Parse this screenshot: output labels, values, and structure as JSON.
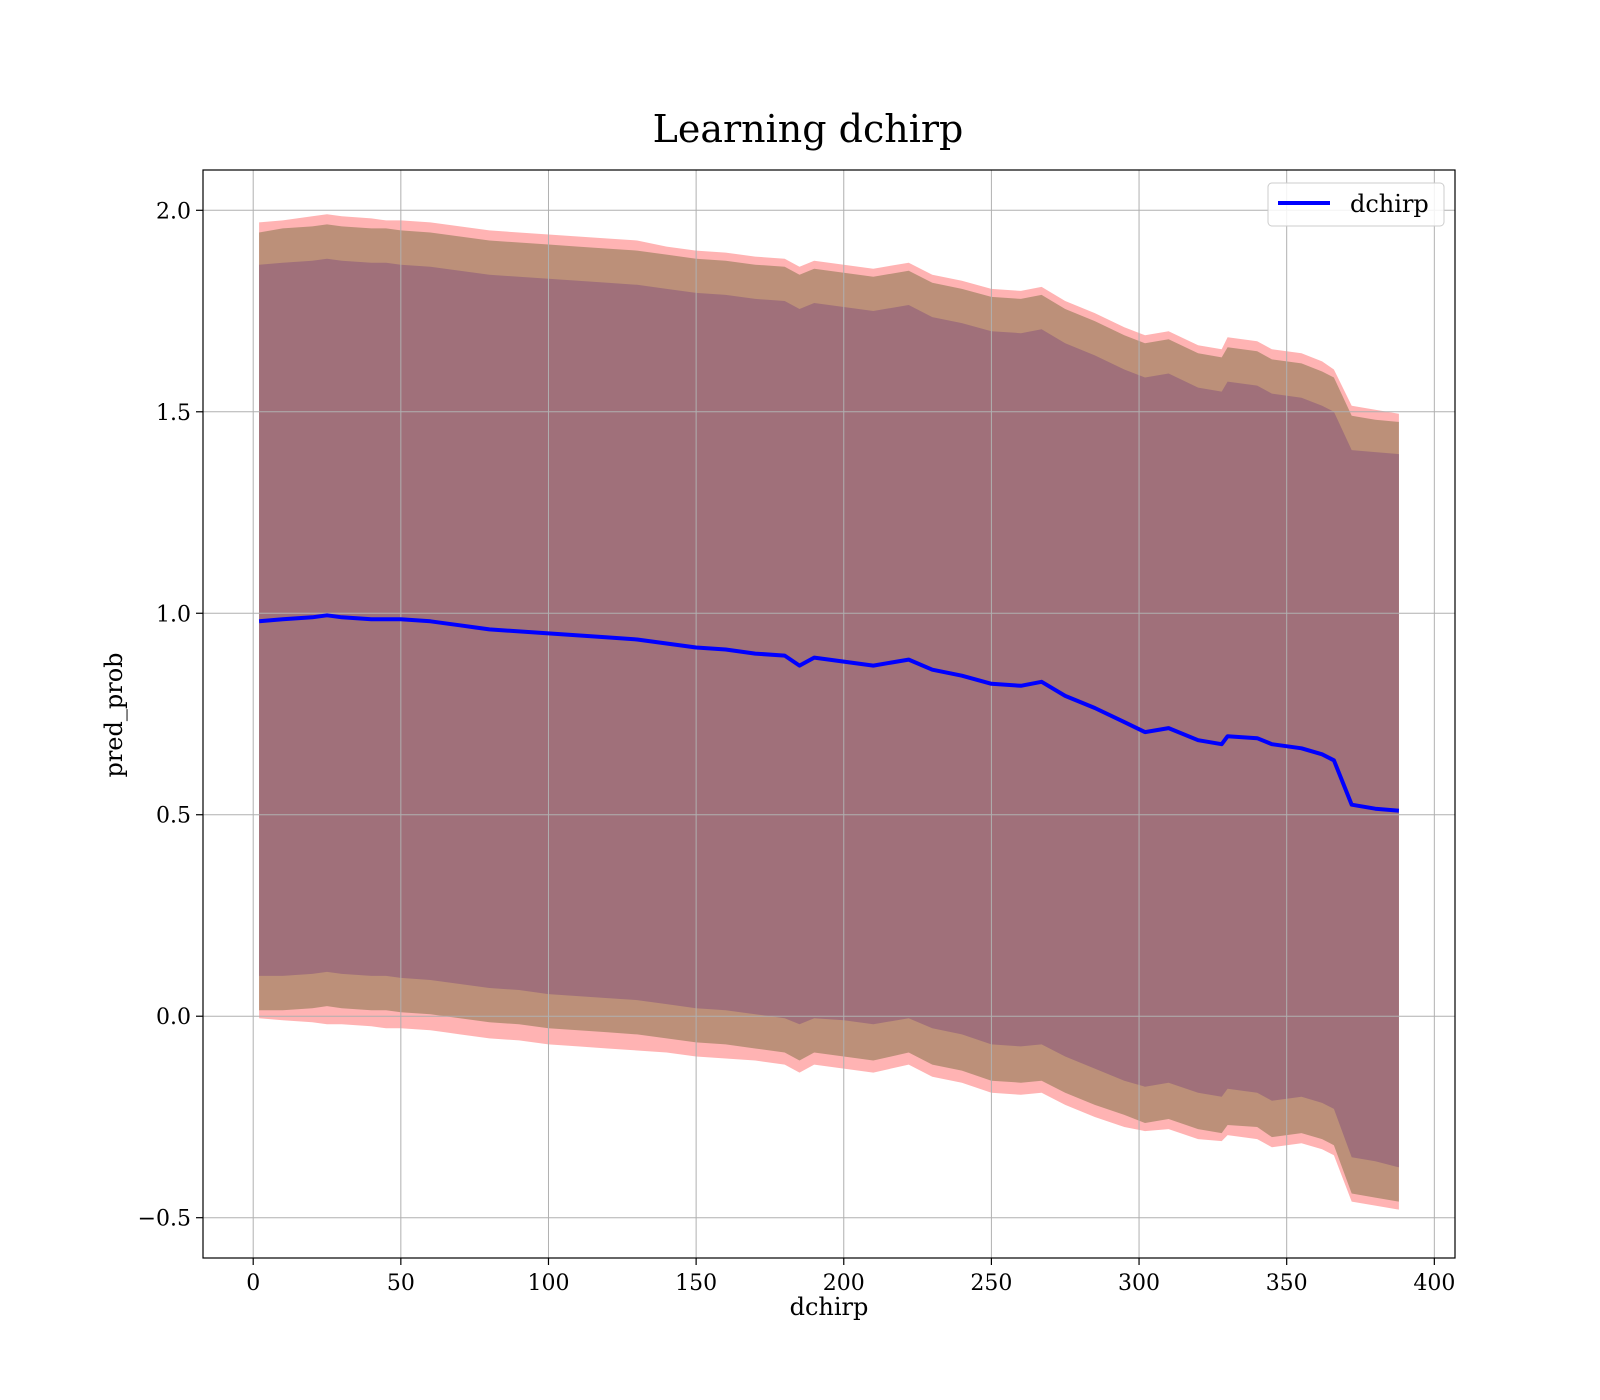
{
  "chart_data": {
    "type": "line",
    "title": "Learning dchirp",
    "xlabel": "dchirp",
    "ylabel": "pred_prob",
    "xlim": [
      -17,
      407
    ],
    "ylim": [
      -0.6,
      2.1
    ],
    "xticks": [
      0,
      50,
      100,
      150,
      200,
      250,
      300,
      350,
      400
    ],
    "xtick_labels": [
      "0",
      "50",
      "100",
      "150",
      "200",
      "250",
      "300",
      "350",
      "400"
    ],
    "yticks": [
      -0.5,
      0.0,
      0.5,
      1.0,
      1.5,
      2.0
    ],
    "ytick_labels": [
      "−0.5",
      "0.0",
      "0.5",
      "1.0",
      "1.5",
      "2.0"
    ],
    "grid": true,
    "legend": {
      "position": "upper right",
      "entries": [
        "dchirp"
      ]
    },
    "colors": {
      "line": "#0000ff",
      "band_outer": "#ff8080",
      "band_mid": "#b08a6e",
      "band_inner": "#a0707a"
    },
    "series": [
      {
        "name": "dchirp",
        "x": [
          2,
          10,
          20,
          25,
          30,
          40,
          45,
          50,
          60,
          65,
          70,
          75,
          80,
          90,
          100,
          110,
          120,
          130,
          140,
          150,
          160,
          170,
          180,
          185,
          190,
          200,
          210,
          222,
          230,
          240,
          250,
          260,
          267,
          275,
          285,
          295,
          302,
          310,
          320,
          328,
          330,
          340,
          345,
          355,
          362,
          366,
          372,
          380,
          388
        ],
        "y": [
          0.98,
          0.985,
          0.99,
          0.995,
          0.99,
          0.985,
          0.985,
          0.985,
          0.98,
          0.975,
          0.97,
          0.965,
          0.96,
          0.955,
          0.95,
          0.945,
          0.94,
          0.935,
          0.925,
          0.915,
          0.91,
          0.9,
          0.895,
          0.87,
          0.89,
          0.88,
          0.87,
          0.885,
          0.86,
          0.845,
          0.825,
          0.82,
          0.83,
          0.795,
          0.765,
          0.73,
          0.705,
          0.715,
          0.685,
          0.675,
          0.695,
          0.69,
          0.675,
          0.665,
          0.65,
          0.635,
          0.525,
          0.515,
          0.51
        ]
      }
    ],
    "bands": [
      {
        "lower": [
          -0.005,
          -0.01,
          -0.015,
          -0.02,
          -0.02,
          -0.025,
          -0.03,
          -0.03,
          -0.035,
          -0.04,
          -0.045,
          -0.05,
          -0.055,
          -0.06,
          -0.07,
          -0.075,
          -0.08,
          -0.085,
          -0.09,
          -0.1,
          -0.105,
          -0.11,
          -0.12,
          -0.14,
          -0.12,
          -0.13,
          -0.14,
          -0.12,
          -0.15,
          -0.165,
          -0.19,
          -0.195,
          -0.19,
          -0.22,
          -0.25,
          -0.275,
          -0.285,
          -0.28,
          -0.305,
          -0.31,
          -0.295,
          -0.305,
          -0.325,
          -0.315,
          -0.33,
          -0.345,
          -0.46,
          -0.47,
          -0.48
        ],
        "upper": [
          1.97,
          1.975,
          1.985,
          1.99,
          1.985,
          1.98,
          1.975,
          1.975,
          1.97,
          1.965,
          1.96,
          1.955,
          1.95,
          1.945,
          1.94,
          1.935,
          1.93,
          1.925,
          1.91,
          1.9,
          1.895,
          1.885,
          1.88,
          1.86,
          1.875,
          1.865,
          1.855,
          1.87,
          1.84,
          1.825,
          1.805,
          1.8,
          1.81,
          1.775,
          1.745,
          1.71,
          1.69,
          1.7,
          1.665,
          1.655,
          1.685,
          1.675,
          1.655,
          1.645,
          1.625,
          1.605,
          1.515,
          1.505,
          1.495
        ]
      },
      {
        "lower": [
          0.015,
          0.015,
          0.02,
          0.025,
          0.02,
          0.015,
          0.015,
          0.01,
          0.005,
          0.0,
          -0.005,
          -0.01,
          -0.015,
          -0.02,
          -0.03,
          -0.035,
          -0.04,
          -0.045,
          -0.055,
          -0.065,
          -0.07,
          -0.08,
          -0.09,
          -0.11,
          -0.09,
          -0.1,
          -0.11,
          -0.09,
          -0.12,
          -0.135,
          -0.16,
          -0.165,
          -0.16,
          -0.19,
          -0.22,
          -0.245,
          -0.265,
          -0.255,
          -0.28,
          -0.29,
          -0.27,
          -0.275,
          -0.3,
          -0.29,
          -0.305,
          -0.32,
          -0.44,
          -0.45,
          -0.46
        ],
        "upper": [
          1.945,
          1.955,
          1.96,
          1.965,
          1.96,
          1.955,
          1.955,
          1.95,
          1.945,
          1.94,
          1.935,
          1.93,
          1.925,
          1.92,
          1.915,
          1.91,
          1.905,
          1.9,
          1.89,
          1.88,
          1.875,
          1.865,
          1.86,
          1.84,
          1.855,
          1.845,
          1.835,
          1.85,
          1.82,
          1.805,
          1.785,
          1.78,
          1.79,
          1.755,
          1.725,
          1.69,
          1.67,
          1.68,
          1.645,
          1.635,
          1.66,
          1.65,
          1.63,
          1.62,
          1.6,
          1.585,
          1.49,
          1.48,
          1.475
        ]
      },
      {
        "lower": [
          0.1,
          0.1,
          0.105,
          0.11,
          0.105,
          0.1,
          0.1,
          0.095,
          0.09,
          0.085,
          0.08,
          0.075,
          0.07,
          0.065,
          0.055,
          0.05,
          0.045,
          0.04,
          0.03,
          0.02,
          0.015,
          0.005,
          -0.005,
          -0.02,
          -0.005,
          -0.01,
          -0.02,
          -0.005,
          -0.03,
          -0.045,
          -0.07,
          -0.075,
          -0.07,
          -0.1,
          -0.13,
          -0.16,
          -0.175,
          -0.165,
          -0.19,
          -0.2,
          -0.18,
          -0.19,
          -0.21,
          -0.2,
          -0.215,
          -0.23,
          -0.35,
          -0.36,
          -0.375
        ],
        "upper": [
          1.865,
          1.87,
          1.875,
          1.88,
          1.875,
          1.87,
          1.87,
          1.865,
          1.86,
          1.855,
          1.85,
          1.845,
          1.84,
          1.835,
          1.83,
          1.825,
          1.82,
          1.815,
          1.805,
          1.795,
          1.79,
          1.78,
          1.775,
          1.755,
          1.77,
          1.76,
          1.75,
          1.765,
          1.735,
          1.72,
          1.7,
          1.695,
          1.705,
          1.67,
          1.64,
          1.605,
          1.585,
          1.595,
          1.56,
          1.55,
          1.575,
          1.565,
          1.545,
          1.535,
          1.515,
          1.5,
          1.405,
          1.4,
          1.395
        ]
      }
    ]
  }
}
